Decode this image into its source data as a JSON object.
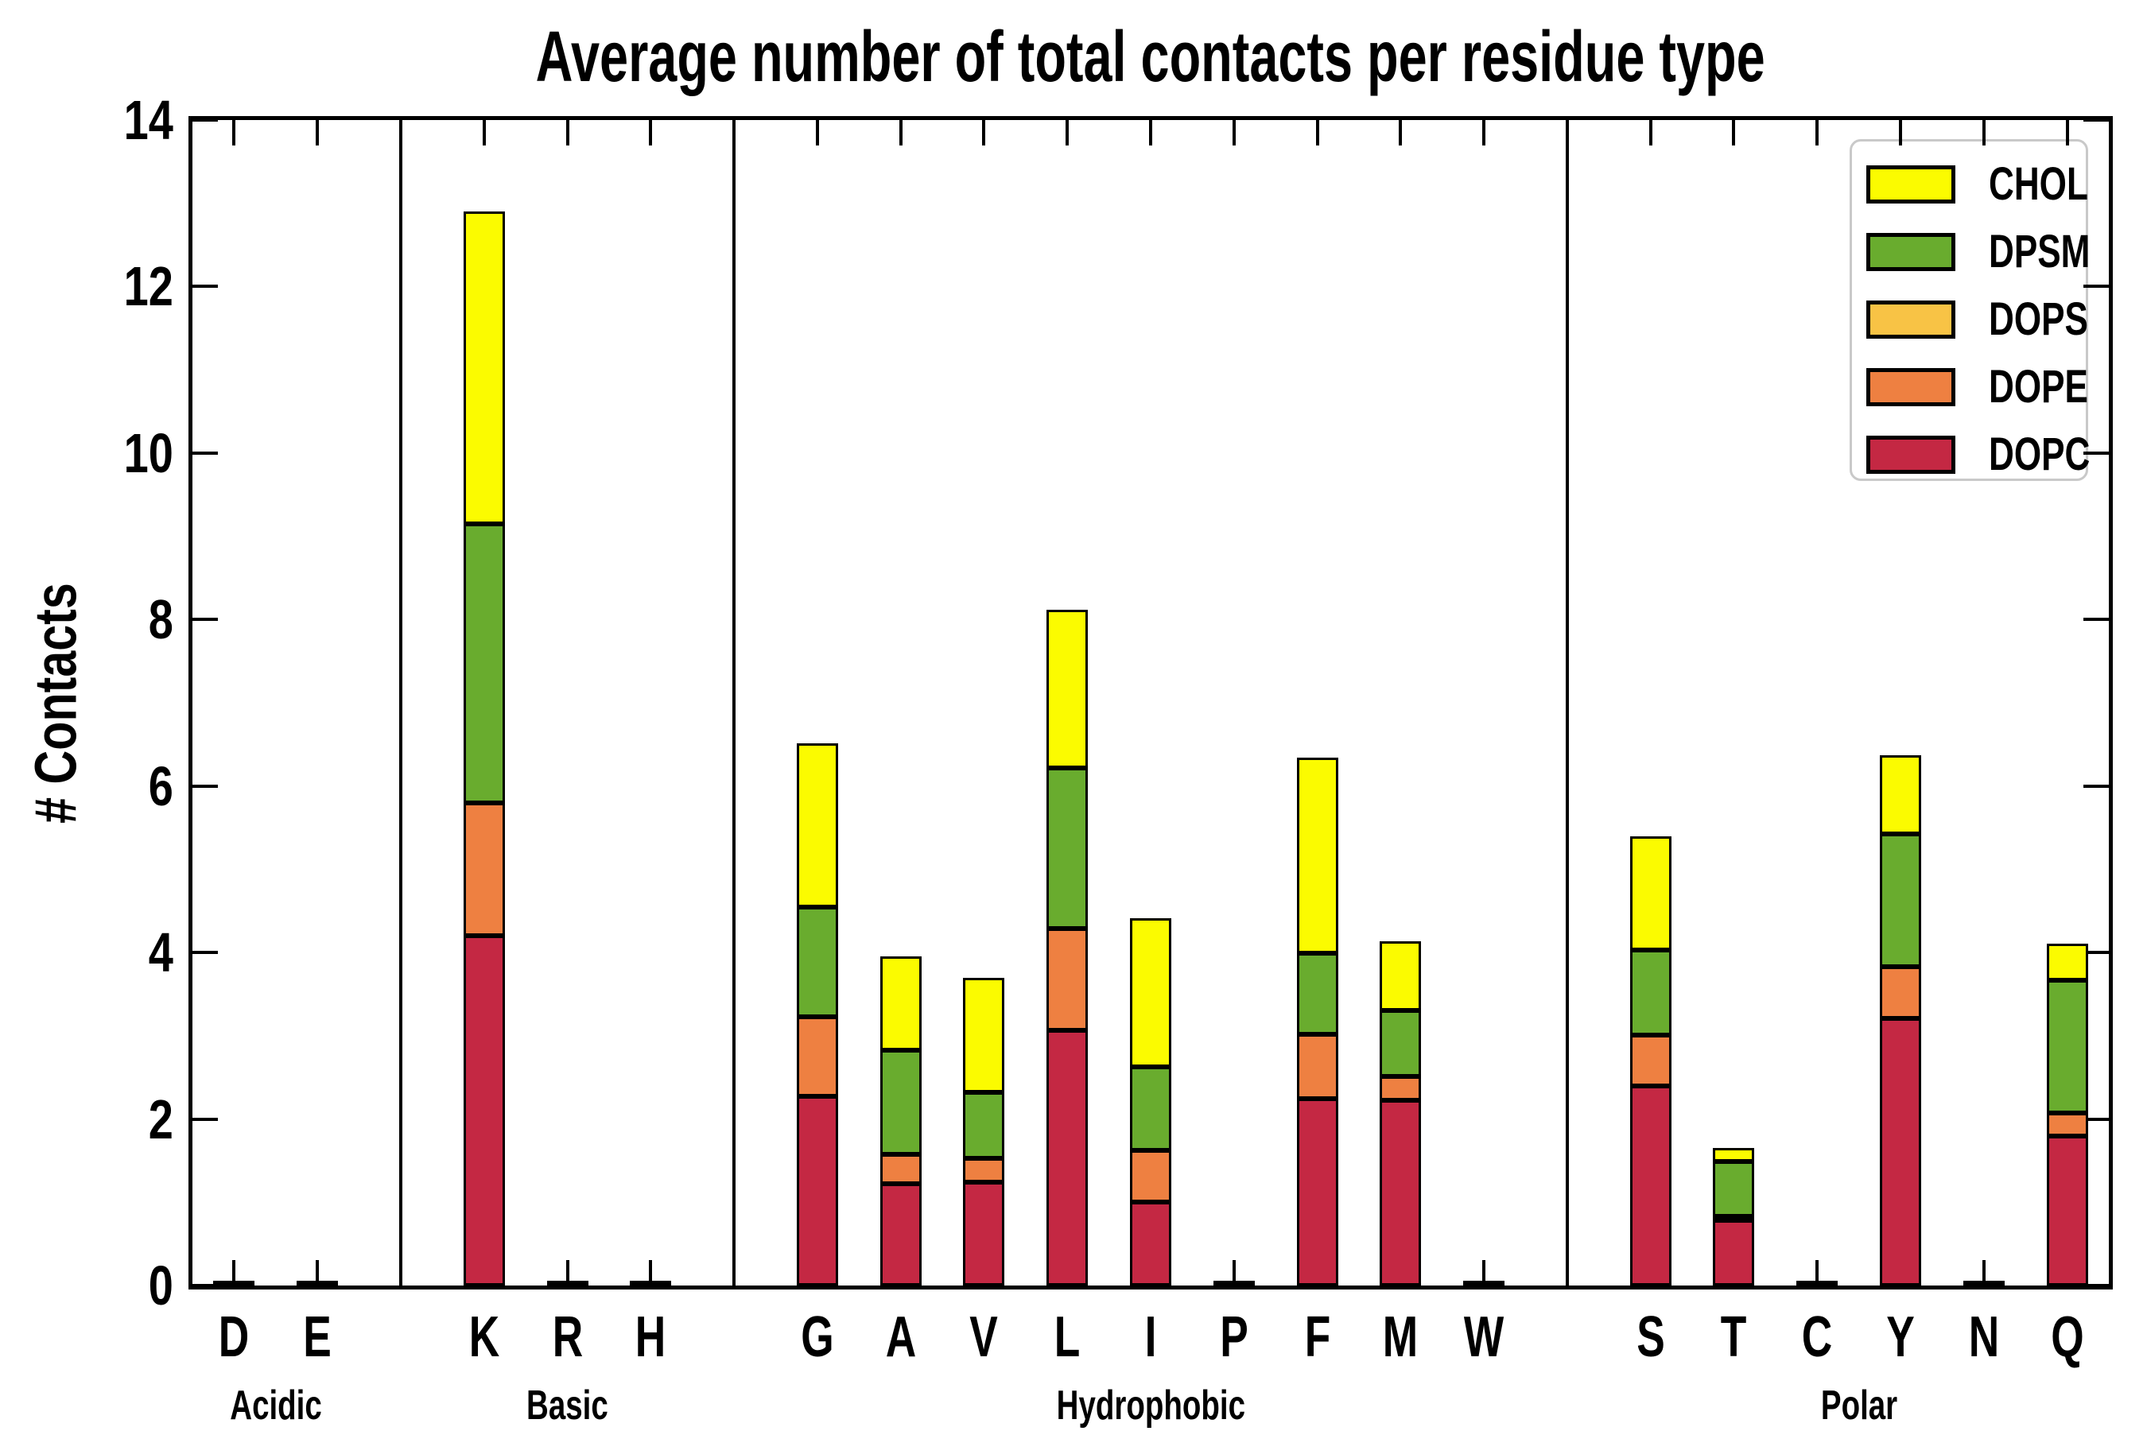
{
  "chart_data": {
    "type": "bar",
    "stacked": true,
    "title": "Average number of total contacts per residue type",
    "ylabel": "# Contacts",
    "xlabel": "",
    "ylim": [
      0,
      14
    ],
    "ytick_step": 2,
    "grid": false,
    "legend_position": "upper right",
    "edge_color": "#000000",
    "colors": {
      "CHOL": "#FBFB00",
      "DPSM": "#69AC2E",
      "DOPS": "#F8C345",
      "DOPE": "#EE8041",
      "DOPC": "#C42843"
    },
    "stack_order": [
      "DOPC",
      "DOPE",
      "DOPS",
      "DPSM",
      "CHOL"
    ],
    "legend_order": [
      "CHOL",
      "DPSM",
      "DOPS",
      "DOPE",
      "DOPC"
    ],
    "groups": [
      {
        "label": "Acidic",
        "categories": [
          "D",
          "E"
        ]
      },
      {
        "label": "Basic",
        "categories": [
          "K",
          "R",
          "H"
        ]
      },
      {
        "label": "Hydrophobic",
        "categories": [
          "G",
          "A",
          "V",
          "L",
          "I",
          "P",
          "F",
          "M",
          "W"
        ]
      },
      {
        "label": "Polar",
        "categories": [
          "S",
          "T",
          "C",
          "Y",
          "N",
          "Q"
        ]
      }
    ],
    "categories": [
      "D",
      "E",
      "K",
      "R",
      "H",
      "G",
      "A",
      "V",
      "L",
      "I",
      "P",
      "F",
      "M",
      "W",
      "S",
      "T",
      "C",
      "Y",
      "N",
      "Q"
    ],
    "series": [
      {
        "name": "DOPC",
        "values": [
          0.04,
          0.04,
          4.2,
          0.04,
          0.04,
          2.27,
          1.22,
          1.24,
          3.07,
          1.0,
          0.04,
          2.24,
          2.23,
          0.04,
          2.4,
          0.78,
          0.04,
          3.21,
          0.04,
          1.8
        ]
      },
      {
        "name": "DOPE",
        "values": [
          0,
          0,
          1.6,
          0,
          0,
          0.96,
          0.36,
          0.29,
          1.22,
          0.62,
          0,
          0.78,
          0.28,
          0,
          0.61,
          0.05,
          0,
          0.62,
          0,
          0.27
        ]
      },
      {
        "name": "DOPS",
        "values": [
          0,
          0,
          0,
          0,
          0,
          0,
          0,
          0,
          0,
          0,
          0,
          0,
          0,
          0,
          0,
          0,
          0,
          0,
          0,
          0
        ]
      },
      {
        "name": "DPSM",
        "values": [
          0,
          0,
          3.35,
          0,
          0,
          1.32,
          1.25,
          0.79,
          1.93,
          1.01,
          0,
          0.97,
          0.79,
          0,
          1.02,
          0.66,
          0,
          1.59,
          0,
          1.6
        ]
      },
      {
        "name": "CHOL",
        "values": [
          0,
          0,
          3.75,
          0,
          0,
          1.96,
          1.12,
          1.38,
          1.9,
          1.78,
          0,
          2.35,
          0.84,
          0,
          1.37,
          0.16,
          0,
          0.95,
          0,
          0.44
        ]
      }
    ],
    "totals": [
      0.04,
      0.04,
      12.9,
      0.04,
      0.04,
      6.51,
      3.95,
      3.7,
      8.12,
      4.41,
      0.04,
      6.34,
      4.14,
      0.04,
      5.4,
      1.65,
      0.04,
      6.37,
      0.04,
      4.11
    ]
  }
}
